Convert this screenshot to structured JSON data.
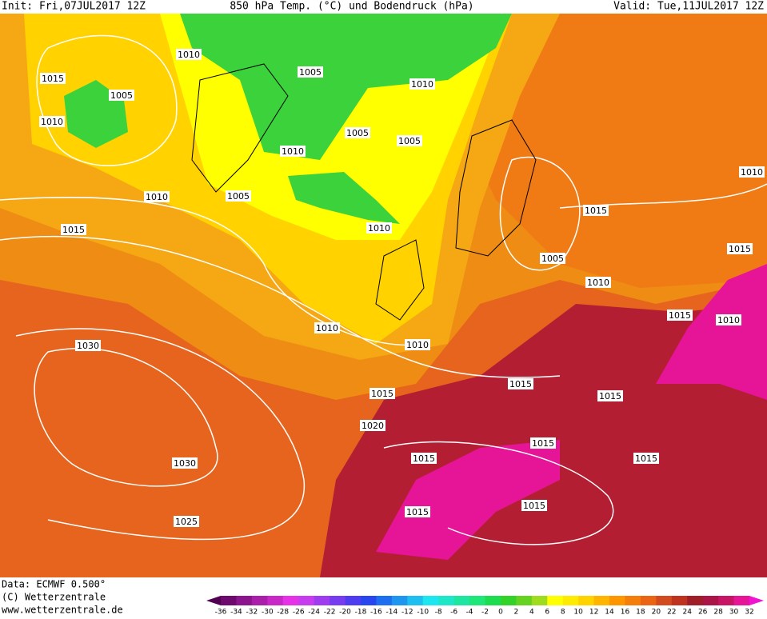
{
  "header": {
    "init": "Init: Fri,07JUL2017 12Z",
    "title": "850 hPa Temp. (°C) und Bodendruck (hPa)",
    "valid": "Valid: Tue,11JUL2017 12Z"
  },
  "footer": {
    "data": "Data: ECMWF  0.500°",
    "copyright": "(C) Wetterzentrale",
    "url": "www.wetterzentrale.de"
  },
  "isobar_labels": [
    "1010",
    "1005",
    "1015",
    "1005",
    "1010",
    "1010",
    "1005",
    "1005",
    "1010",
    "1010",
    "1005",
    "1010",
    "1015",
    "1015",
    "1010",
    "1005",
    "1015",
    "1010",
    "1010",
    "1010",
    "1015",
    "1010",
    "1030",
    "1015",
    "1015",
    "1015",
    "1020",
    "1015",
    "1015",
    "1015",
    "1030",
    "1015",
    "1015",
    "1025"
  ],
  "colorbar": {
    "labels": [
      -36,
      -34,
      -32,
      -30,
      -28,
      -26,
      -24,
      -22,
      -20,
      -18,
      -16,
      -14,
      -12,
      -10,
      -8,
      -6,
      -4,
      -2,
      0,
      2,
      4,
      6,
      8,
      10,
      12,
      14,
      16,
      18,
      20,
      22,
      24,
      26,
      28,
      30,
      32
    ],
    "colors": [
      "#500050",
      "#6e0a6e",
      "#8c148c",
      "#aa1eaa",
      "#c828c8",
      "#e632e6",
      "#c83cf0",
      "#a03cf0",
      "#783cf0",
      "#503cf0",
      "#2846f0",
      "#1e6ef0",
      "#1e96f0",
      "#1ebef0",
      "#1ee6f0",
      "#1ee6c8",
      "#1ee6a0",
      "#1ee678",
      "#1edc50",
      "#32d228",
      "#64d21e",
      "#a0dc1e",
      "#ffff00",
      "#ffeb00",
      "#ffd200",
      "#ffb400",
      "#ff9600",
      "#f57d0a",
      "#eb6414",
      "#d24b1e",
      "#be321e",
      "#a01e28",
      "#aa1446",
      "#c81464",
      "#e61496",
      "#f014d2"
    ]
  }
}
